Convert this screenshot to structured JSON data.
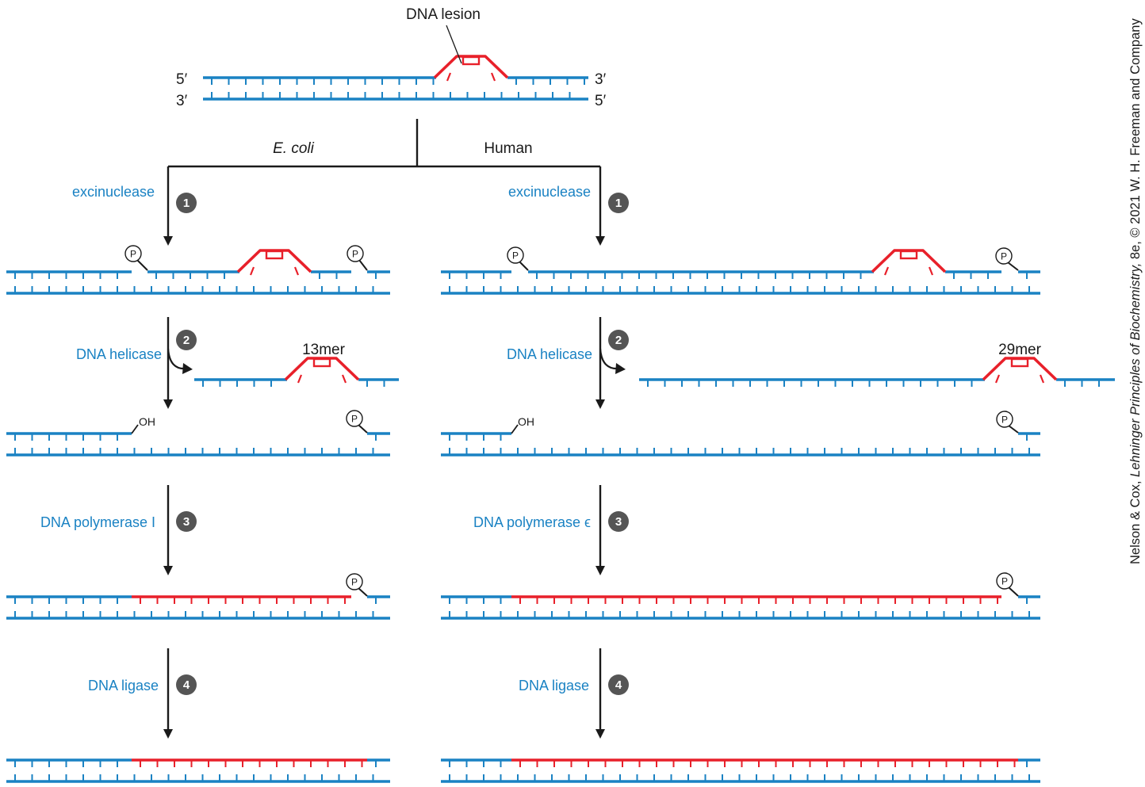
{
  "colors": {
    "dna_strand": "#1a82c3",
    "lesion_and_new_dna": "#e8202a",
    "text": "#1a1a1a",
    "enzyme_label": "#1a82c3",
    "step_circle": "#555555"
  },
  "top": {
    "lesion_label": "DNA lesion",
    "left_top_end": "5′",
    "left_bottom_end": "3′",
    "right_top_end": "3′",
    "right_bottom_end": "5′"
  },
  "branches": {
    "ecoli_label": "E. coli",
    "human_label": "Human"
  },
  "ecoli": {
    "steps": [
      {
        "number": "1",
        "enzyme": "excinuclease"
      },
      {
        "number": "2",
        "enzyme": "DNA helicase"
      },
      {
        "number": "3",
        "enzyme": "DNA polymerase I"
      },
      {
        "number": "4",
        "enzyme": "DNA ligase"
      }
    ],
    "fragment_label": "13mer"
  },
  "human": {
    "steps": [
      {
        "number": "1",
        "enzyme": "excinuclease"
      },
      {
        "number": "2",
        "enzyme": "DNA helicase"
      },
      {
        "number": "3",
        "enzyme": "DNA polymerase ϵ"
      },
      {
        "number": "4",
        "enzyme": "DNA ligase"
      }
    ],
    "fragment_label": "29mer"
  },
  "markers": {
    "phosphate": "P",
    "hydroxyl": "OH"
  },
  "credit": {
    "prefix": "Nelson & Cox, ",
    "book_title": "Lehninger Principles of Biochemistry,",
    "suffix": " 8e, © 2021 W. H. Freeman and Company"
  }
}
